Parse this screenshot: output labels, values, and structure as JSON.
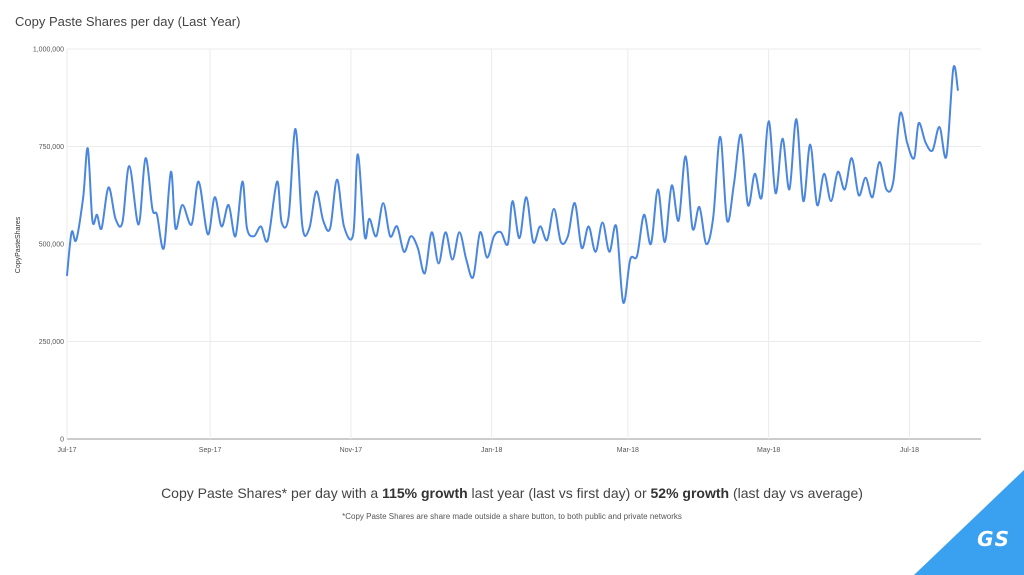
{
  "title": "Copy Paste Shares per day (Last Year)",
  "caption": {
    "part1": "Copy Paste Shares* per day with a ",
    "bold1": "115% growth",
    "part2": " last year (last vs first day) or ",
    "bold2": "52% growth",
    "part3": " (last day vs average)"
  },
  "footnote": "*Copy Paste Shares are share made outside a share button, to both public and private networks",
  "logo": "GS",
  "colors": {
    "line": "#4a86e0",
    "corner": "#3aa0f0",
    "grid": "#ebebeb"
  },
  "chart_data": {
    "type": "line",
    "title": "Copy Paste Shares per day (Last Year)",
    "ylabel": "CopyPasteShares",
    "xlabel": "",
    "ylim": [
      0,
      1000000
    ],
    "yticks": [
      {
        "value": 0,
        "label": "0"
      },
      {
        "value": 250000,
        "label": "250,000"
      },
      {
        "value": 500000,
        "label": "500,000"
      },
      {
        "value": 750000,
        "label": "750,000"
      },
      {
        "value": 1000000,
        "label": "1,000,000"
      }
    ],
    "xlim": [
      "2017-07-01",
      "2018-08-01"
    ],
    "xticks": [
      {
        "date": "2017-07-01",
        "label": "Jul-17"
      },
      {
        "date": "2017-09-01",
        "label": "Sep-17"
      },
      {
        "date": "2017-11-01",
        "label": "Nov-17"
      },
      {
        "date": "2018-01-01",
        "label": "Jan-18"
      },
      {
        "date": "2018-03-01",
        "label": "Mar-18"
      },
      {
        "date": "2018-05-01",
        "label": "May-18"
      },
      {
        "date": "2018-07-01",
        "label": "Jul-18"
      }
    ],
    "grid": true,
    "series": [
      {
        "name": "",
        "points": [
          [
            "2017-07-01",
            420000
          ],
          [
            "2017-07-03",
            530000
          ],
          [
            "2017-07-05",
            510000
          ],
          [
            "2017-07-08",
            620000
          ],
          [
            "2017-07-10",
            745000
          ],
          [
            "2017-07-12",
            560000
          ],
          [
            "2017-07-14",
            575000
          ],
          [
            "2017-07-16",
            540000
          ],
          [
            "2017-07-19",
            645000
          ],
          [
            "2017-07-22",
            565000
          ],
          [
            "2017-07-25",
            555000
          ],
          [
            "2017-07-28",
            700000
          ],
          [
            "2017-08-01",
            550000
          ],
          [
            "2017-08-04",
            720000
          ],
          [
            "2017-08-07",
            590000
          ],
          [
            "2017-08-09",
            575000
          ],
          [
            "2017-08-12",
            490000
          ],
          [
            "2017-08-15",
            685000
          ],
          [
            "2017-08-17",
            540000
          ],
          [
            "2017-08-20",
            600000
          ],
          [
            "2017-08-24",
            550000
          ],
          [
            "2017-08-27",
            660000
          ],
          [
            "2017-08-31",
            525000
          ],
          [
            "2017-09-03",
            620000
          ],
          [
            "2017-09-06",
            545000
          ],
          [
            "2017-09-09",
            600000
          ],
          [
            "2017-09-12",
            520000
          ],
          [
            "2017-09-15",
            660000
          ],
          [
            "2017-09-17",
            540000
          ],
          [
            "2017-09-20",
            520000
          ],
          [
            "2017-09-23",
            545000
          ],
          [
            "2017-09-26",
            510000
          ],
          [
            "2017-09-30",
            660000
          ],
          [
            "2017-10-02",
            555000
          ],
          [
            "2017-10-05",
            570000
          ],
          [
            "2017-10-08",
            795000
          ],
          [
            "2017-10-11",
            545000
          ],
          [
            "2017-10-14",
            540000
          ],
          [
            "2017-10-17",
            635000
          ],
          [
            "2017-10-20",
            560000
          ],
          [
            "2017-10-23",
            540000
          ],
          [
            "2017-10-26",
            665000
          ],
          [
            "2017-10-29",
            545000
          ],
          [
            "2017-11-02",
            525000
          ],
          [
            "2017-11-04",
            730000
          ],
          [
            "2017-11-07",
            520000
          ],
          [
            "2017-11-09",
            565000
          ],
          [
            "2017-11-12",
            520000
          ],
          [
            "2017-11-15",
            605000
          ],
          [
            "2017-11-18",
            520000
          ],
          [
            "2017-11-21",
            545000
          ],
          [
            "2017-11-24",
            480000
          ],
          [
            "2017-11-27",
            520000
          ],
          [
            "2017-11-30",
            490000
          ],
          [
            "2017-12-03",
            425000
          ],
          [
            "2017-12-06",
            530000
          ],
          [
            "2017-12-09",
            450000
          ],
          [
            "2017-12-12",
            530000
          ],
          [
            "2017-12-15",
            460000
          ],
          [
            "2017-12-18",
            530000
          ],
          [
            "2017-12-21",
            460000
          ],
          [
            "2017-12-24",
            415000
          ],
          [
            "2017-12-27",
            530000
          ],
          [
            "2017-12-30",
            465000
          ],
          [
            "2018-01-02",
            520000
          ],
          [
            "2018-01-05",
            530000
          ],
          [
            "2018-01-08",
            500000
          ],
          [
            "2018-01-10",
            610000
          ],
          [
            "2018-01-13",
            515000
          ],
          [
            "2018-01-16",
            620000
          ],
          [
            "2018-01-19",
            505000
          ],
          [
            "2018-01-22",
            545000
          ],
          [
            "2018-01-25",
            510000
          ],
          [
            "2018-01-28",
            590000
          ],
          [
            "2018-01-31",
            505000
          ],
          [
            "2018-02-03",
            520000
          ],
          [
            "2018-02-06",
            605000
          ],
          [
            "2018-02-09",
            490000
          ],
          [
            "2018-02-12",
            545000
          ],
          [
            "2018-02-15",
            480000
          ],
          [
            "2018-02-18",
            555000
          ],
          [
            "2018-02-21",
            480000
          ],
          [
            "2018-02-24",
            545000
          ],
          [
            "2018-02-27",
            350000
          ],
          [
            "2018-03-02",
            460000
          ],
          [
            "2018-03-05",
            470000
          ],
          [
            "2018-03-08",
            575000
          ],
          [
            "2018-03-11",
            500000
          ],
          [
            "2018-03-14",
            640000
          ],
          [
            "2018-03-17",
            505000
          ],
          [
            "2018-03-20",
            650000
          ],
          [
            "2018-03-23",
            560000
          ],
          [
            "2018-03-26",
            725000
          ],
          [
            "2018-03-29",
            540000
          ],
          [
            "2018-04-01",
            595000
          ],
          [
            "2018-04-04",
            500000
          ],
          [
            "2018-04-07",
            570000
          ],
          [
            "2018-04-10",
            775000
          ],
          [
            "2018-04-13",
            560000
          ],
          [
            "2018-04-16",
            655000
          ],
          [
            "2018-04-19",
            780000
          ],
          [
            "2018-04-22",
            600000
          ],
          [
            "2018-04-25",
            680000
          ],
          [
            "2018-04-28",
            620000
          ],
          [
            "2018-05-01",
            815000
          ],
          [
            "2018-05-04",
            630000
          ],
          [
            "2018-05-07",
            770000
          ],
          [
            "2018-05-10",
            640000
          ],
          [
            "2018-05-13",
            820000
          ],
          [
            "2018-05-16",
            610000
          ],
          [
            "2018-05-19",
            755000
          ],
          [
            "2018-05-22",
            600000
          ],
          [
            "2018-05-25",
            680000
          ],
          [
            "2018-05-28",
            610000
          ],
          [
            "2018-05-31",
            685000
          ],
          [
            "2018-06-03",
            640000
          ],
          [
            "2018-06-06",
            720000
          ],
          [
            "2018-06-09",
            625000
          ],
          [
            "2018-06-12",
            670000
          ],
          [
            "2018-06-15",
            620000
          ],
          [
            "2018-06-18",
            710000
          ],
          [
            "2018-06-21",
            640000
          ],
          [
            "2018-06-24",
            660000
          ],
          [
            "2018-06-27",
            835000
          ],
          [
            "2018-06-30",
            760000
          ],
          [
            "2018-07-03",
            720000
          ],
          [
            "2018-07-05",
            810000
          ],
          [
            "2018-07-08",
            760000
          ],
          [
            "2018-07-11",
            740000
          ],
          [
            "2018-07-14",
            800000
          ],
          [
            "2018-07-17",
            725000
          ],
          [
            "2018-07-20",
            950000
          ],
          [
            "2018-07-22",
            895000
          ]
        ]
      }
    ]
  }
}
